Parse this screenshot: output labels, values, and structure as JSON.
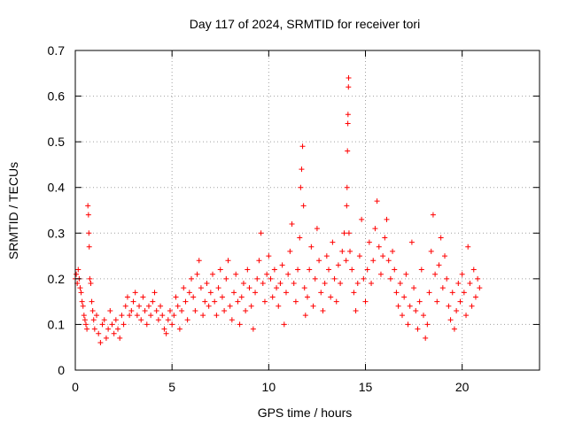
{
  "chart_data": {
    "type": "scatter",
    "title": "Day 117 of 2024, SRMTID for receiver tori",
    "xlabel": "GPS time / hours",
    "ylabel": "SRMTID / TECUs",
    "xlim": [
      0,
      24
    ],
    "ylim": [
      0,
      0.7
    ],
    "xticks": [
      0,
      5,
      10,
      15,
      20
    ],
    "xtick_labels": [
      "0",
      "5",
      "10",
      "15",
      "20"
    ],
    "yticks": [
      0,
      0.1,
      0.2,
      0.3,
      0.4,
      0.5,
      0.6,
      0.7
    ],
    "ytick_labels": [
      "0",
      "0.1",
      "0.2",
      "0.3",
      "0.4",
      "0.5",
      "0.6",
      "0.7"
    ],
    "grid": true,
    "marker": "plus",
    "marker_color": "#ff0000",
    "series": [
      {
        "name": "SRMTID",
        "points": [
          [
            0.0,
            0.2
          ],
          [
            0.05,
            0.21
          ],
          [
            0.1,
            0.19
          ],
          [
            0.15,
            0.22
          ],
          [
            0.2,
            0.2
          ],
          [
            0.25,
            0.18
          ],
          [
            0.3,
            0.17
          ],
          [
            0.35,
            0.15
          ],
          [
            0.4,
            0.14
          ],
          [
            0.45,
            0.12
          ],
          [
            0.5,
            0.11
          ],
          [
            0.55,
            0.1
          ],
          [
            0.6,
            0.09
          ],
          [
            0.65,
            0.36
          ],
          [
            0.68,
            0.34
          ],
          [
            0.7,
            0.3
          ],
          [
            0.72,
            0.27
          ],
          [
            0.75,
            0.2
          ],
          [
            0.8,
            0.19
          ],
          [
            0.85,
            0.15
          ],
          [
            0.9,
            0.13
          ],
          [
            0.95,
            0.11
          ],
          [
            1.0,
            0.09
          ],
          [
            1.1,
            0.12
          ],
          [
            1.2,
            0.08
          ],
          [
            1.3,
            0.06
          ],
          [
            1.4,
            0.1
          ],
          [
            1.5,
            0.11
          ],
          [
            1.6,
            0.07
          ],
          [
            1.7,
            0.09
          ],
          [
            1.8,
            0.13
          ],
          [
            1.9,
            0.1
          ],
          [
            2.0,
            0.08
          ],
          [
            2.1,
            0.11
          ],
          [
            2.2,
            0.09
          ],
          [
            2.3,
            0.07
          ],
          [
            2.4,
            0.12
          ],
          [
            2.5,
            0.1
          ],
          [
            2.6,
            0.14
          ],
          [
            2.7,
            0.16
          ],
          [
            2.8,
            0.12
          ],
          [
            2.9,
            0.13
          ],
          [
            3.0,
            0.15
          ],
          [
            3.1,
            0.17
          ],
          [
            3.2,
            0.12
          ],
          [
            3.3,
            0.14
          ],
          [
            3.4,
            0.11
          ],
          [
            3.5,
            0.16
          ],
          [
            3.6,
            0.13
          ],
          [
            3.7,
            0.1
          ],
          [
            3.8,
            0.14
          ],
          [
            3.9,
            0.12
          ],
          [
            4.0,
            0.15
          ],
          [
            4.1,
            0.17
          ],
          [
            4.2,
            0.13
          ],
          [
            4.3,
            0.11
          ],
          [
            4.4,
            0.14
          ],
          [
            4.5,
            0.12
          ],
          [
            4.6,
            0.09
          ],
          [
            4.7,
            0.08
          ],
          [
            4.8,
            0.11
          ],
          [
            4.9,
            0.13
          ],
          [
            5.0,
            0.1
          ],
          [
            5.1,
            0.12
          ],
          [
            5.2,
            0.16
          ],
          [
            5.3,
            0.14
          ],
          [
            5.4,
            0.09
          ],
          [
            5.5,
            0.13
          ],
          [
            5.6,
            0.18
          ],
          [
            5.7,
            0.15
          ],
          [
            5.8,
            0.11
          ],
          [
            5.9,
            0.17
          ],
          [
            6.0,
            0.2
          ],
          [
            6.1,
            0.16
          ],
          [
            6.2,
            0.13
          ],
          [
            6.3,
            0.21
          ],
          [
            6.4,
            0.24
          ],
          [
            6.5,
            0.18
          ],
          [
            6.6,
            0.12
          ],
          [
            6.7,
            0.15
          ],
          [
            6.8,
            0.19
          ],
          [
            6.9,
            0.14
          ],
          [
            7.0,
            0.17
          ],
          [
            7.1,
            0.21
          ],
          [
            7.2,
            0.15
          ],
          [
            7.3,
            0.12
          ],
          [
            7.4,
            0.18
          ],
          [
            7.5,
            0.22
          ],
          [
            7.6,
            0.16
          ],
          [
            7.7,
            0.13
          ],
          [
            7.8,
            0.2
          ],
          [
            7.9,
            0.24
          ],
          [
            8.0,
            0.14
          ],
          [
            8.1,
            0.11
          ],
          [
            8.2,
            0.17
          ],
          [
            8.3,
            0.21
          ],
          [
            8.4,
            0.15
          ],
          [
            8.5,
            0.1
          ],
          [
            8.6,
            0.16
          ],
          [
            8.7,
            0.19
          ],
          [
            8.8,
            0.13
          ],
          [
            8.9,
            0.22
          ],
          [
            9.0,
            0.18
          ],
          [
            9.1,
            0.14
          ],
          [
            9.2,
            0.09
          ],
          [
            9.3,
            0.17
          ],
          [
            9.4,
            0.2
          ],
          [
            9.5,
            0.24
          ],
          [
            9.6,
            0.3
          ],
          [
            9.7,
            0.19
          ],
          [
            9.8,
            0.15
          ],
          [
            9.9,
            0.21
          ],
          [
            10.0,
            0.25
          ],
          [
            10.1,
            0.2
          ],
          [
            10.2,
            0.16
          ],
          [
            10.3,
            0.22
          ],
          [
            10.4,
            0.18
          ],
          [
            10.5,
            0.14
          ],
          [
            10.6,
            0.19
          ],
          [
            10.7,
            0.23
          ],
          [
            10.8,
            0.1
          ],
          [
            10.9,
            0.17
          ],
          [
            11.0,
            0.21
          ],
          [
            11.1,
            0.26
          ],
          [
            11.2,
            0.32
          ],
          [
            11.3,
            0.19
          ],
          [
            11.4,
            0.15
          ],
          [
            11.5,
            0.22
          ],
          [
            11.6,
            0.29
          ],
          [
            11.65,
            0.4
          ],
          [
            11.7,
            0.44
          ],
          [
            11.75,
            0.49
          ],
          [
            11.8,
            0.36
          ],
          [
            11.85,
            0.18
          ],
          [
            11.9,
            0.12
          ],
          [
            12.0,
            0.16
          ],
          [
            12.1,
            0.22
          ],
          [
            12.2,
            0.27
          ],
          [
            12.3,
            0.14
          ],
          [
            12.4,
            0.2
          ],
          [
            12.5,
            0.31
          ],
          [
            12.6,
            0.24
          ],
          [
            12.7,
            0.17
          ],
          [
            12.8,
            0.13
          ],
          [
            12.9,
            0.19
          ],
          [
            13.0,
            0.25
          ],
          [
            13.1,
            0.22
          ],
          [
            13.2,
            0.16
          ],
          [
            13.3,
            0.28
          ],
          [
            13.4,
            0.2
          ],
          [
            13.5,
            0.15
          ],
          [
            13.6,
            0.23
          ],
          [
            13.7,
            0.19
          ],
          [
            13.8,
            0.26
          ],
          [
            13.9,
            0.3
          ],
          [
            14.0,
            0.24
          ],
          [
            14.03,
            0.36
          ],
          [
            14.05,
            0.4
          ],
          [
            14.07,
            0.48
          ],
          [
            14.09,
            0.54
          ],
          [
            14.1,
            0.56
          ],
          [
            14.12,
            0.62
          ],
          [
            14.13,
            0.64
          ],
          [
            14.15,
            0.3
          ],
          [
            14.2,
            0.26
          ],
          [
            14.3,
            0.22
          ],
          [
            14.4,
            0.17
          ],
          [
            14.5,
            0.13
          ],
          [
            14.6,
            0.19
          ],
          [
            14.7,
            0.25
          ],
          [
            14.8,
            0.33
          ],
          [
            14.9,
            0.2
          ],
          [
            15.0,
            0.15
          ],
          [
            15.1,
            0.22
          ],
          [
            15.2,
            0.28
          ],
          [
            15.3,
            0.19
          ],
          [
            15.4,
            0.24
          ],
          [
            15.5,
            0.31
          ],
          [
            15.6,
            0.37
          ],
          [
            15.7,
            0.27
          ],
          [
            15.8,
            0.21
          ],
          [
            15.9,
            0.25
          ],
          [
            16.0,
            0.29
          ],
          [
            16.1,
            0.33
          ],
          [
            16.2,
            0.24
          ],
          [
            16.3,
            0.2
          ],
          [
            16.4,
            0.26
          ],
          [
            16.5,
            0.22
          ],
          [
            16.6,
            0.17
          ],
          [
            16.7,
            0.14
          ],
          [
            16.8,
            0.19
          ],
          [
            16.9,
            0.12
          ],
          [
            17.0,
            0.16
          ],
          [
            17.1,
            0.21
          ],
          [
            17.2,
            0.1
          ],
          [
            17.3,
            0.14
          ],
          [
            17.4,
            0.28
          ],
          [
            17.5,
            0.18
          ],
          [
            17.6,
            0.13
          ],
          [
            17.7,
            0.09
          ],
          [
            17.8,
            0.15
          ],
          [
            17.9,
            0.22
          ],
          [
            18.0,
            0.12
          ],
          [
            18.1,
            0.07
          ],
          [
            18.2,
            0.1
          ],
          [
            18.3,
            0.17
          ],
          [
            18.4,
            0.26
          ],
          [
            18.5,
            0.34
          ],
          [
            18.6,
            0.21
          ],
          [
            18.7,
            0.15
          ],
          [
            18.8,
            0.23
          ],
          [
            18.9,
            0.29
          ],
          [
            19.0,
            0.18
          ],
          [
            19.1,
            0.25
          ],
          [
            19.2,
            0.2
          ],
          [
            19.3,
            0.14
          ],
          [
            19.4,
            0.11
          ],
          [
            19.5,
            0.17
          ],
          [
            19.6,
            0.09
          ],
          [
            19.7,
            0.13
          ],
          [
            19.8,
            0.19
          ],
          [
            19.9,
            0.15
          ],
          [
            20.0,
            0.21
          ],
          [
            20.1,
            0.17
          ],
          [
            20.2,
            0.12
          ],
          [
            20.3,
            0.27
          ],
          [
            20.4,
            0.19
          ],
          [
            20.5,
            0.14
          ],
          [
            20.6,
            0.22
          ],
          [
            20.7,
            0.16
          ],
          [
            20.8,
            0.2
          ],
          [
            20.9,
            0.18
          ]
        ]
      }
    ]
  }
}
